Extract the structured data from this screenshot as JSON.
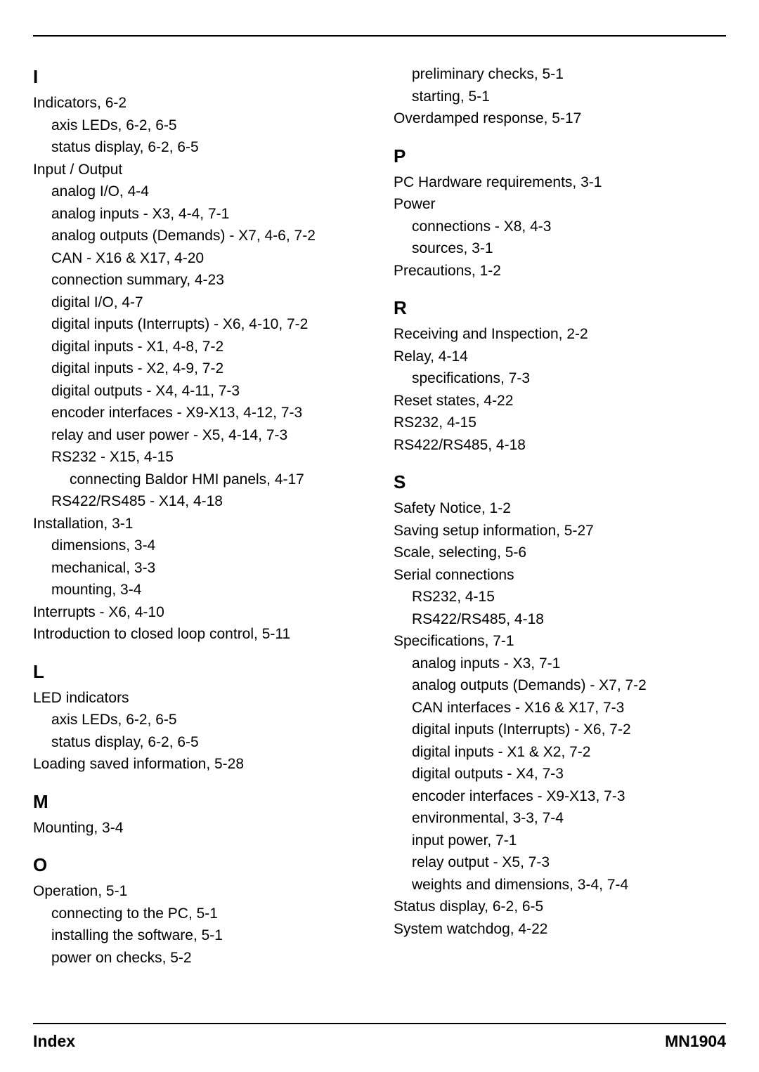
{
  "columns": [
    [
      {
        "type": "letter",
        "text": "I",
        "first": true
      },
      {
        "type": "entry",
        "level": 0,
        "text": "Indicators, 6-2"
      },
      {
        "type": "entry",
        "level": 1,
        "text": "axis LEDs, 6-2, 6-5"
      },
      {
        "type": "entry",
        "level": 1,
        "text": "status display, 6-2, 6-5"
      },
      {
        "type": "entry",
        "level": 0,
        "text": "Input / Output"
      },
      {
        "type": "entry",
        "level": 1,
        "text": "analog I/O, 4-4"
      },
      {
        "type": "entry",
        "level": 1,
        "text": "analog inputs - X3, 4-4, 7-1"
      },
      {
        "type": "entry",
        "level": 1,
        "text": "analog outputs (Demands) - X7, 4-6, 7-2"
      },
      {
        "type": "entry",
        "level": 1,
        "text": "CAN - X16 & X17, 4-20"
      },
      {
        "type": "entry",
        "level": 1,
        "text": "connection summary, 4-23"
      },
      {
        "type": "entry",
        "level": 1,
        "text": "digital I/O, 4-7"
      },
      {
        "type": "entry",
        "level": 1,
        "text": "digital inputs (Interrupts) - X6, 4-10, 7-2"
      },
      {
        "type": "entry",
        "level": 1,
        "text": "digital inputs - X1, 4-8, 7-2"
      },
      {
        "type": "entry",
        "level": 1,
        "text": "digital inputs - X2, 4-9, 7-2"
      },
      {
        "type": "entry",
        "level": 1,
        "text": "digital outputs - X4, 4-11, 7-3"
      },
      {
        "type": "entry",
        "level": 1,
        "text": "encoder interfaces - X9-X13, 4-12, 7-3"
      },
      {
        "type": "entry",
        "level": 1,
        "text": "relay and user power - X5, 4-14, 7-3"
      },
      {
        "type": "entry",
        "level": 1,
        "text": "RS232 - X15, 4-15"
      },
      {
        "type": "entry",
        "level": 2,
        "text": "connecting Baldor HMI panels, 4-17"
      },
      {
        "type": "entry",
        "level": 1,
        "text": "RS422/RS485 - X14, 4-18"
      },
      {
        "type": "entry",
        "level": 0,
        "text": "Installation, 3-1"
      },
      {
        "type": "entry",
        "level": 1,
        "text": "dimensions, 3-4"
      },
      {
        "type": "entry",
        "level": 1,
        "text": "mechanical, 3-3"
      },
      {
        "type": "entry",
        "level": 1,
        "text": "mounting, 3-4"
      },
      {
        "type": "entry",
        "level": 0,
        "text": "Interrupts - X6, 4-10"
      },
      {
        "type": "entry",
        "level": 0,
        "text": "Introduction to closed loop control, 5-11"
      },
      {
        "type": "letter",
        "text": "L"
      },
      {
        "type": "entry",
        "level": 0,
        "text": "LED indicators"
      },
      {
        "type": "entry",
        "level": 1,
        "text": "axis LEDs, 6-2, 6-5"
      },
      {
        "type": "entry",
        "level": 1,
        "text": "status display, 6-2, 6-5"
      },
      {
        "type": "entry",
        "level": 0,
        "text": "Loading saved information, 5-28"
      },
      {
        "type": "letter",
        "text": "M"
      },
      {
        "type": "entry",
        "level": 0,
        "text": "Mounting, 3-4"
      },
      {
        "type": "letter",
        "text": "O"
      },
      {
        "type": "entry",
        "level": 0,
        "text": "Operation, 5-1"
      },
      {
        "type": "entry",
        "level": 1,
        "text": "connecting to the PC, 5-1"
      },
      {
        "type": "entry",
        "level": 1,
        "text": "installing the software, 5-1"
      },
      {
        "type": "entry",
        "level": 1,
        "text": "power on checks, 5-2"
      }
    ],
    [
      {
        "type": "entry",
        "level": 1,
        "text": "preliminary checks, 5-1"
      },
      {
        "type": "entry",
        "level": 1,
        "text": "starting, 5-1"
      },
      {
        "type": "entry",
        "level": 0,
        "text": "Overdamped response, 5-17"
      },
      {
        "type": "letter",
        "text": "P"
      },
      {
        "type": "entry",
        "level": 0,
        "text": "PC Hardware requirements, 3-1"
      },
      {
        "type": "entry",
        "level": 0,
        "text": "Power"
      },
      {
        "type": "entry",
        "level": 1,
        "text": "connections - X8, 4-3"
      },
      {
        "type": "entry",
        "level": 1,
        "text": "sources, 3-1"
      },
      {
        "type": "entry",
        "level": 0,
        "text": "Precautions, 1-2"
      },
      {
        "type": "letter",
        "text": "R"
      },
      {
        "type": "entry",
        "level": 0,
        "text": "Receiving and Inspection, 2-2"
      },
      {
        "type": "entry",
        "level": 0,
        "text": "Relay, 4-14"
      },
      {
        "type": "entry",
        "level": 1,
        "text": "specifications, 7-3"
      },
      {
        "type": "entry",
        "level": 0,
        "text": "Reset states, 4-22"
      },
      {
        "type": "entry",
        "level": 0,
        "text": "RS232, 4-15"
      },
      {
        "type": "entry",
        "level": 0,
        "text": "RS422/RS485, 4-18"
      },
      {
        "type": "letter",
        "text": "S"
      },
      {
        "type": "entry",
        "level": 0,
        "text": "Safety Notice, 1-2"
      },
      {
        "type": "entry",
        "level": 0,
        "text": "Saving setup information, 5-27"
      },
      {
        "type": "entry",
        "level": 0,
        "text": "Scale, selecting, 5-6"
      },
      {
        "type": "entry",
        "level": 0,
        "text": "Serial connections"
      },
      {
        "type": "entry",
        "level": 1,
        "text": "RS232, 4-15"
      },
      {
        "type": "entry",
        "level": 1,
        "text": "RS422/RS485, 4-18"
      },
      {
        "type": "entry",
        "level": 0,
        "text": "Specifications, 7-1"
      },
      {
        "type": "entry",
        "level": 1,
        "text": "analog inputs - X3, 7-1"
      },
      {
        "type": "entry",
        "level": 1,
        "text": "analog outputs (Demands) - X7, 7-2"
      },
      {
        "type": "entry",
        "level": 1,
        "text": "CAN interfaces - X16 & X17, 7-3"
      },
      {
        "type": "entry",
        "level": 1,
        "text": "digital inputs (Interrupts) - X6, 7-2"
      },
      {
        "type": "entry",
        "level": 1,
        "text": "digital inputs - X1 & X2, 7-2"
      },
      {
        "type": "entry",
        "level": 1,
        "text": "digital outputs - X4, 7-3"
      },
      {
        "type": "entry",
        "level": 1,
        "text": "encoder interfaces - X9-X13, 7-3"
      },
      {
        "type": "entry",
        "level": 1,
        "text": "environmental, 3-3, 7-4"
      },
      {
        "type": "entry",
        "level": 1,
        "text": "input power, 7-1"
      },
      {
        "type": "entry",
        "level": 1,
        "text": "relay output - X5, 7-3"
      },
      {
        "type": "entry",
        "level": 1,
        "text": "weights and dimensions, 3-4, 7-4"
      },
      {
        "type": "entry",
        "level": 0,
        "text": "Status display, 6-2, 6-5"
      },
      {
        "type": "entry",
        "level": 0,
        "text": "System watchdog, 4-22"
      }
    ]
  ],
  "footer": {
    "left": "Index",
    "right": "MN1904"
  }
}
